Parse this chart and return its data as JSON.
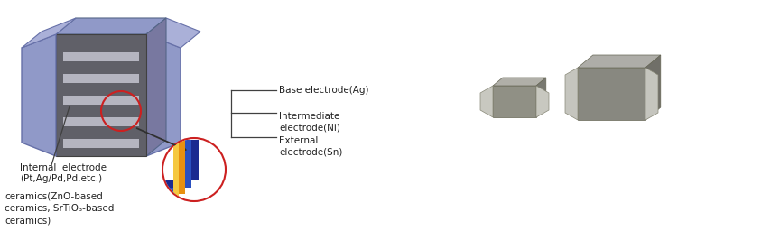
{
  "background_color": "#ffffff",
  "fig_width": 8.64,
  "fig_height": 2.66,
  "dpi": 100,
  "labels": {
    "base_electrode": "Base electrode(Ag)",
    "intermediate_electrode": "Intermediate\nelectrode(Ni)",
    "external_electrode": "External\nelectrode(Sn)",
    "internal_electrode": "Internal  electrode\n(Pt,Ag/Pd,Pd,etc.)",
    "ceramics": "ceramics(ZnO-based\nceramics, SrTiO₃-based\nceramics)"
  },
  "colors": {
    "body_light_blue": "#9099c8",
    "body_dark_gray": "#606068",
    "body_mid_gray": "#787880",
    "stripe_light": "#a8a8b0",
    "circle_red": "#cc2020",
    "layer_blue_dark": "#1a2a90",
    "layer_blue_mid": "#2a50c0",
    "layer_orange": "#e89010",
    "layer_yellow": "#f5c840",
    "arrow_color": "#303030",
    "text_color": "#222222",
    "line_color": "#404040"
  }
}
